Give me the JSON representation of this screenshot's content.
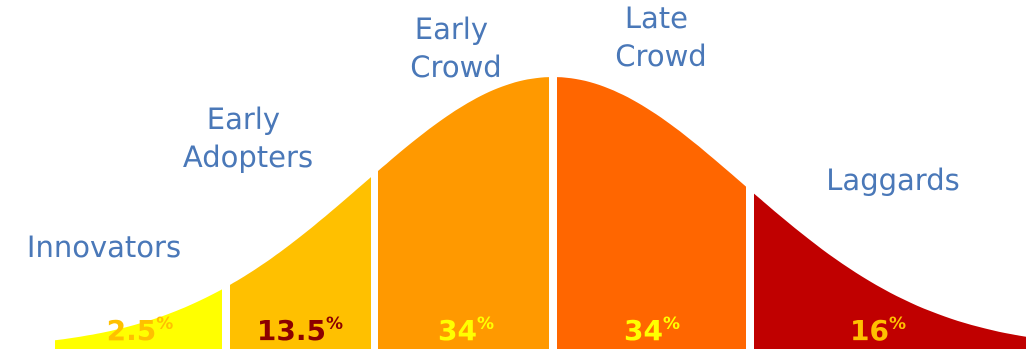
{
  "diagram": {
    "segments": [
      {
        "label_lines": [
          "Innovators"
        ],
        "value": "2.5",
        "unit": "%",
        "fill": "#ffff00",
        "text_color": "#ffc000"
      },
      {
        "label_lines": [
          "Early",
          "Adopters"
        ],
        "value": "13.5",
        "unit": "%",
        "fill": "#ffc000",
        "text_color": "#8b0000"
      },
      {
        "label_lines": [
          "Early",
          "Crowd"
        ],
        "value": "34",
        "unit": "%",
        "fill": "#ff9900",
        "text_color": "#ffff00"
      },
      {
        "label_lines": [
          "Late",
          "Crowd"
        ],
        "value": "34",
        "unit": "%",
        "fill": "#ff6600",
        "text_color": "#ffff00"
      },
      {
        "label_lines": [
          "Laggards"
        ],
        "value": "16",
        "unit": "%",
        "fill": "#c00000",
        "text_color": "#ffc000"
      }
    ],
    "label_color": "#4a78b8"
  }
}
